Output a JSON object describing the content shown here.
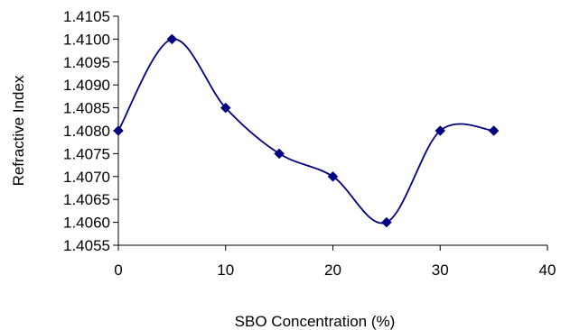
{
  "chart_data": {
    "type": "line",
    "title": "",
    "xlabel": "SBO Concentration (%)",
    "ylabel": "Refractive Index",
    "xlim": [
      0,
      40
    ],
    "ylim": [
      1.4055,
      1.4105
    ],
    "x_ticks": [
      "0",
      "10",
      "20",
      "30",
      "40"
    ],
    "y_ticks": [
      "1.4055",
      "1.4060",
      "1.4065",
      "1.4070",
      "1.4075",
      "1.4080",
      "1.4085",
      "1.4090",
      "1.4095",
      "1.4100",
      "1.4105"
    ],
    "grid": false,
    "legend": "none",
    "smooth": true,
    "marker": "diamond",
    "series_color": "#000080",
    "x": [
      0,
      5,
      10,
      15,
      20,
      25,
      30,
      35
    ],
    "series": [
      {
        "values": [
          1.408,
          1.41,
          1.4085,
          1.4075,
          1.407,
          1.406,
          1.408,
          1.408
        ]
      }
    ]
  }
}
